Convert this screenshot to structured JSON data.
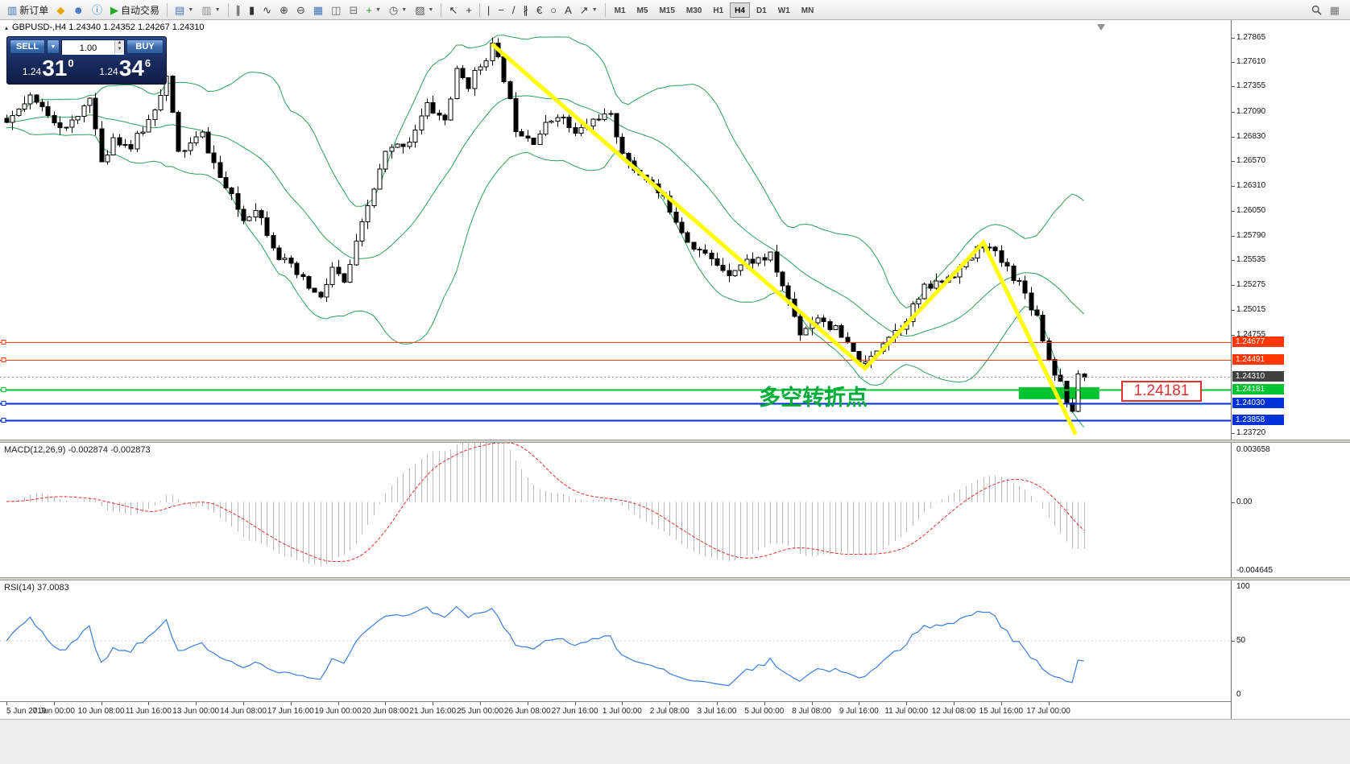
{
  "toolbar": {
    "timeframes": [
      "M1",
      "M5",
      "M15",
      "M30",
      "H1",
      "H4",
      "D1",
      "W1",
      "MN"
    ],
    "active_timeframe": "H4",
    "items": [
      {
        "name": "new-order-button",
        "icon": "new-order-icon",
        "glyph": "▥",
        "color": "#3f74b8",
        "label": "新订单"
      },
      {
        "name": "metaquotes-button",
        "icon": "metaquotes-diamond-icon",
        "glyph": "◆",
        "color": "#eba600"
      },
      {
        "name": "community-button",
        "icon": "community-icon",
        "glyph": "☻",
        "color": "#3a6ec0"
      },
      {
        "name": "help-button",
        "icon": "info-icon",
        "glyph": "ⓘ",
        "color": "#2a7ac0"
      },
      {
        "name": "autotrading-button",
        "icon": "autotrading-play-icon",
        "glyph": "▶",
        "color": "#1faa1f",
        "label": "自动交易"
      },
      {
        "sep": true
      },
      {
        "name": "new-chart-button",
        "icon": "new-chart-icon",
        "glyph": "▤",
        "color": "#3f74b8",
        "caret": true
      },
      {
        "name": "profiles-button",
        "icon": "profiles-icon",
        "glyph": "▥",
        "color": "#8a8a8a",
        "caret": true
      },
      {
        "sep": true
      },
      {
        "name": "bars-chart-button",
        "icon": "ohlc-bars-icon",
        "glyph": "∥",
        "color": "#333333"
      },
      {
        "name": "candles-chart-button",
        "icon": "candlestick-icon",
        "glyph": "▮",
        "color": "#333333"
      },
      {
        "name": "line-chart-button",
        "icon": "line-chart-icon",
        "glyph": "∿",
        "color": "#333333"
      },
      {
        "name": "zoom-in-button",
        "icon": "zoom-in-icon",
        "glyph": "⊕",
        "color": "#444444"
      },
      {
        "name": "zoom-out-button",
        "icon": "zoom-out-icon",
        "glyph": "⊖",
        "color": "#444444"
      },
      {
        "name": "grid-button",
        "icon": "grid-icon",
        "glyph": "▦",
        "color": "#3f74b8"
      },
      {
        "name": "tile-windows-button",
        "icon": "tile-windows-icon",
        "glyph": "◫",
        "color": "#666666"
      },
      {
        "name": "cascade-windows-button",
        "icon": "cascade-windows-icon",
        "glyph": "⊟",
        "color": "#666666"
      },
      {
        "name": "indicators-button",
        "icon": "indicators-plus-icon",
        "glyph": "+",
        "color": "#18a018",
        "caret": true
      },
      {
        "name": "periods-button",
        "icon": "clock-icon",
        "glyph": "◷",
        "color": "#555555",
        "caret": true
      },
      {
        "name": "templates-button",
        "icon": "template-icon",
        "glyph": "▨",
        "color": "#555555",
        "caret": true
      },
      {
        "sep": true
      },
      {
        "name": "cursor-button",
        "icon": "cursor-icon",
        "glyph": "↖",
        "color": "#333333"
      },
      {
        "name": "crosshair-button",
        "icon": "crosshair-icon",
        "glyph": "+",
        "color": "#333333"
      },
      {
        "sep": true
      },
      {
        "name": "vertical-line-button",
        "icon": "vertical-line-icon",
        "glyph": "|",
        "color": "#333333"
      },
      {
        "name": "horizontal-line-button",
        "icon": "horizontal-line-icon",
        "glyph": "−",
        "color": "#333333"
      },
      {
        "name": "trendline-button",
        "icon": "trendline-icon",
        "glyph": "/",
        "color": "#333333"
      },
      {
        "name": "channel-button",
        "icon": "channel-icon",
        "glyph": "∦",
        "color": "#333333"
      },
      {
        "name": "fibonacci-button",
        "icon": "fibonacci-icon",
        "glyph": "€",
        "color": "#333333"
      },
      {
        "name": "shapes-button",
        "icon": "ellipse-icon",
        "glyph": "○",
        "color": "#333333"
      },
      {
        "name": "text-button",
        "icon": "text-icon",
        "glyph": "A",
        "color": "#333333"
      },
      {
        "name": "arrows-button",
        "icon": "arrow-icon",
        "glyph": "↗",
        "color": "#333333",
        "caret": true
      },
      {
        "sep": true
      },
      {
        "tf": true
      }
    ],
    "right_items": [
      {
        "name": "search-button",
        "icon": "search-icon",
        "svg": "magnifier"
      },
      {
        "name": "windows-button",
        "icon": "window-icon",
        "glyph": "▦",
        "color": "#777777"
      }
    ]
  },
  "icons": {
    "panel_toggle": "▴",
    "spinner_up": "▲",
    "spinner_down": "▼",
    "caret_down": "▼"
  },
  "chart": {
    "symbol_line": "GBPUSD-,H4  1.24340 1.24352 1.24267 1.24310",
    "annotation": "多空转折点",
    "callout": "1.24181"
  },
  "trade_panel": {
    "sell_label": "SELL",
    "buy_label": "BUY",
    "volume": "1.00",
    "sell_price": {
      "prefix": "1.24",
      "big": "31",
      "sup": "0"
    },
    "buy_price": {
      "prefix": "1.24",
      "big": "34",
      "sup": "6"
    }
  },
  "macd": {
    "label": "MACD(12,26,9) -0.002874 -0.002873",
    "axis_max": "0.003658",
    "axis_zero": "0.00",
    "axis_min": "-0.004645"
  },
  "rsi": {
    "label": "RSI(14) 37.0083",
    "axis": [
      "100",
      "50",
      "0"
    ]
  },
  "timeline": [
    "5 Jun 2019",
    "7 Jun 00:00",
    "10 Jun 08:00",
    "11 Jun 16:00",
    "13 Jun 00:00",
    "14 Jun 08:00",
    "17 Jun 16:00",
    "19 Jun 00:00",
    "20 Jun 08:00",
    "21 Jun 16:00",
    "25 Jun 00:00",
    "26 Jun 08:00",
    "27 Jun 16:00",
    "1 Jul 00:00",
    "2 Jul 08:00",
    "3 Jul 16:00",
    "5 Jul 00:00",
    "8 Jul 08:00",
    "9 Jul 16:00",
    "11 Jul 00:00",
    "12 Jul 08:00",
    "15 Jul 16:00",
    "17 Jul 00:00"
  ],
  "colors": {
    "bollinger": "#2aa05a",
    "bull": "#ffffff",
    "bear": "#000000",
    "outline": "#000000",
    "level_red": "#ff3802",
    "level_green": "#00c432",
    "level_blue": "#0030d8",
    "current_tag": "#404040",
    "current_line": "#999999",
    "trendline": "#ffff00",
    "zone": "#00c432",
    "annotation": "#00ad3a",
    "callout": "#e53030",
    "macd_hist": "#b8b8b8",
    "macd_signal": "#e03030",
    "rsi_line": "#3b7ddd"
  },
  "chart_data": {
    "type": "candlestick",
    "symbol": "GBPUSD-",
    "timeframe": "H4",
    "current_bar": {
      "open": 1.2434,
      "high": 1.24352,
      "low": 1.24267,
      "close": 1.2431
    },
    "bars_count": 183,
    "ylim": [
      1.23654,
      1.28051
    ],
    "price_axis_plain": [
      "1.27865",
      "1.27610",
      "1.27355",
      "1.27090",
      "1.26830",
      "1.26570",
      "1.26310",
      "1.26050",
      "1.25790",
      "1.25535",
      "1.25275",
      "1.25015",
      "1.24755",
      "1.23720"
    ],
    "levels": [
      {
        "price": 1.24677,
        "label": "1.24677",
        "color": "#ff3802",
        "width": 1
      },
      {
        "price": 1.24491,
        "label": "1.24491",
        "color": "#ff3802",
        "width": 1
      },
      {
        "price": 1.24181,
        "label": "1.24181",
        "color": "#00c432",
        "width": 2
      },
      {
        "price": 1.2403,
        "label": "1.24030",
        "color": "#0030d8",
        "width": 2
      },
      {
        "price": 1.23858,
        "label": "1.23858",
        "color": "#0030d8",
        "width": 2
      }
    ],
    "current_price_line": {
      "price": 1.2431,
      "label": "1.24310",
      "tag_color": "#404040"
    },
    "price_anchors": [
      [
        0,
        1.2697
      ],
      [
        4,
        1.2722
      ],
      [
        7,
        1.2708
      ],
      [
        10,
        1.269
      ],
      [
        12,
        1.2703
      ],
      [
        14,
        1.2728
      ],
      [
        16,
        1.2652
      ],
      [
        18,
        1.2683
      ],
      [
        21,
        1.2672
      ],
      [
        24,
        1.27
      ],
      [
        27,
        1.2745
      ],
      [
        29,
        1.2665
      ],
      [
        33,
        1.2685
      ],
      [
        36,
        1.264
      ],
      [
        40,
        1.2596
      ],
      [
        42,
        1.261
      ],
      [
        46,
        1.2558
      ],
      [
        49,
        1.2538
      ],
      [
        53,
        1.2512
      ],
      [
        55,
        1.2545
      ],
      [
        57,
        1.2528
      ],
      [
        61,
        1.261
      ],
      [
        64,
        1.2665
      ],
      [
        68,
        1.268
      ],
      [
        71,
        1.2715
      ],
      [
        74,
        1.27
      ],
      [
        76,
        1.275
      ],
      [
        78,
        1.2738
      ],
      [
        82,
        1.2778
      ],
      [
        84,
        1.2745
      ],
      [
        86,
        1.2693
      ],
      [
        89,
        1.268
      ],
      [
        93,
        1.2708
      ],
      [
        96,
        1.2685
      ],
      [
        100,
        1.2705
      ],
      [
        102,
        1.2702
      ],
      [
        105,
        1.2653
      ],
      [
        108,
        1.264
      ],
      [
        112,
        1.2608
      ],
      [
        115,
        1.2575
      ],
      [
        119,
        1.2553
      ],
      [
        122,
        1.2542
      ],
      [
        125,
        1.2552
      ],
      [
        129,
        1.2557
      ],
      [
        132,
        1.2512
      ],
      [
        134,
        1.2478
      ],
      [
        137,
        1.2495
      ],
      [
        140,
        1.248
      ],
      [
        143,
        1.2455
      ],
      [
        145,
        1.2442
      ],
      [
        148,
        1.247
      ],
      [
        151,
        1.2485
      ],
      [
        155,
        1.2523
      ],
      [
        158,
        1.2532
      ],
      [
        162,
        1.255
      ],
      [
        165,
        1.2571
      ],
      [
        168,
        1.2552
      ],
      [
        171,
        1.253
      ],
      [
        174,
        1.2495
      ],
      [
        176,
        1.245
      ],
      [
        178,
        1.2425
      ],
      [
        180,
        1.239
      ],
      [
        181,
        1.2434
      ],
      [
        182,
        1.2431
      ]
    ],
    "indicators": {
      "bollinger": {
        "period": 20,
        "deviation": 2
      },
      "macd": {
        "fast": 12,
        "slow": 26,
        "signal": 9
      },
      "rsi": {
        "period": 14,
        "value": "37.0083"
      }
    },
    "trendline_points": [
      [
        82,
        1.278
      ],
      [
        145,
        1.244
      ],
      [
        165,
        1.2572
      ],
      [
        180.6,
        1.2371
      ]
    ],
    "zone": {
      "i1": 171,
      "i2": 184.6,
      "p1": 1.24203,
      "p2": 1.24077
    }
  }
}
